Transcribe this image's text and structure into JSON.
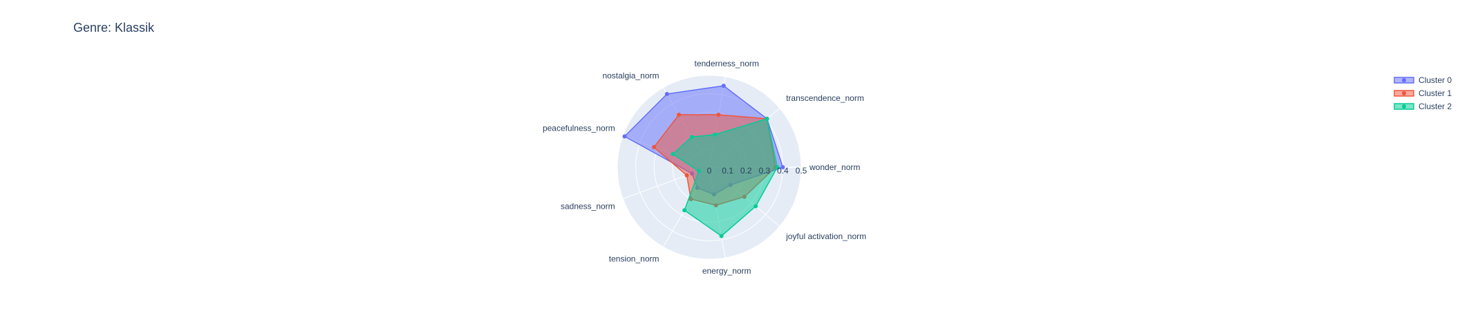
{
  "chart_data": {
    "type": "radar",
    "title": "Genre: Klassik",
    "axes": [
      "wonder_norm",
      "transcendence_norm",
      "tenderness_norm",
      "nostalgia_norm",
      "peacefulness_norm",
      "sadness_norm",
      "tension_norm",
      "energy_norm",
      "joyful activation_norm"
    ],
    "radial_range": [
      0,
      0.5
    ],
    "radial_ticks": [
      "0",
      "0.1",
      "0.2",
      "0.3",
      "0.4",
      "0.5"
    ],
    "grid": true,
    "legend_position": "top-right",
    "series": [
      {
        "name": "Cluster 0",
        "color": "#636efa",
        "values": [
          0.4,
          0.41,
          0.45,
          0.46,
          0.49,
          0.1,
          0.13,
          0.15,
          0.15
        ]
      },
      {
        "name": "Cluster 1",
        "color": "#ef553b",
        "values": [
          0.36,
          0.41,
          0.29,
          0.33,
          0.32,
          0.13,
          0.2,
          0.21,
          0.25
        ]
      },
      {
        "name": "Cluster 2",
        "color": "#00cc96",
        "values": [
          0.37,
          0.41,
          0.18,
          0.19,
          0.21,
          0.06,
          0.27,
          0.38,
          0.33
        ]
      }
    ]
  }
}
